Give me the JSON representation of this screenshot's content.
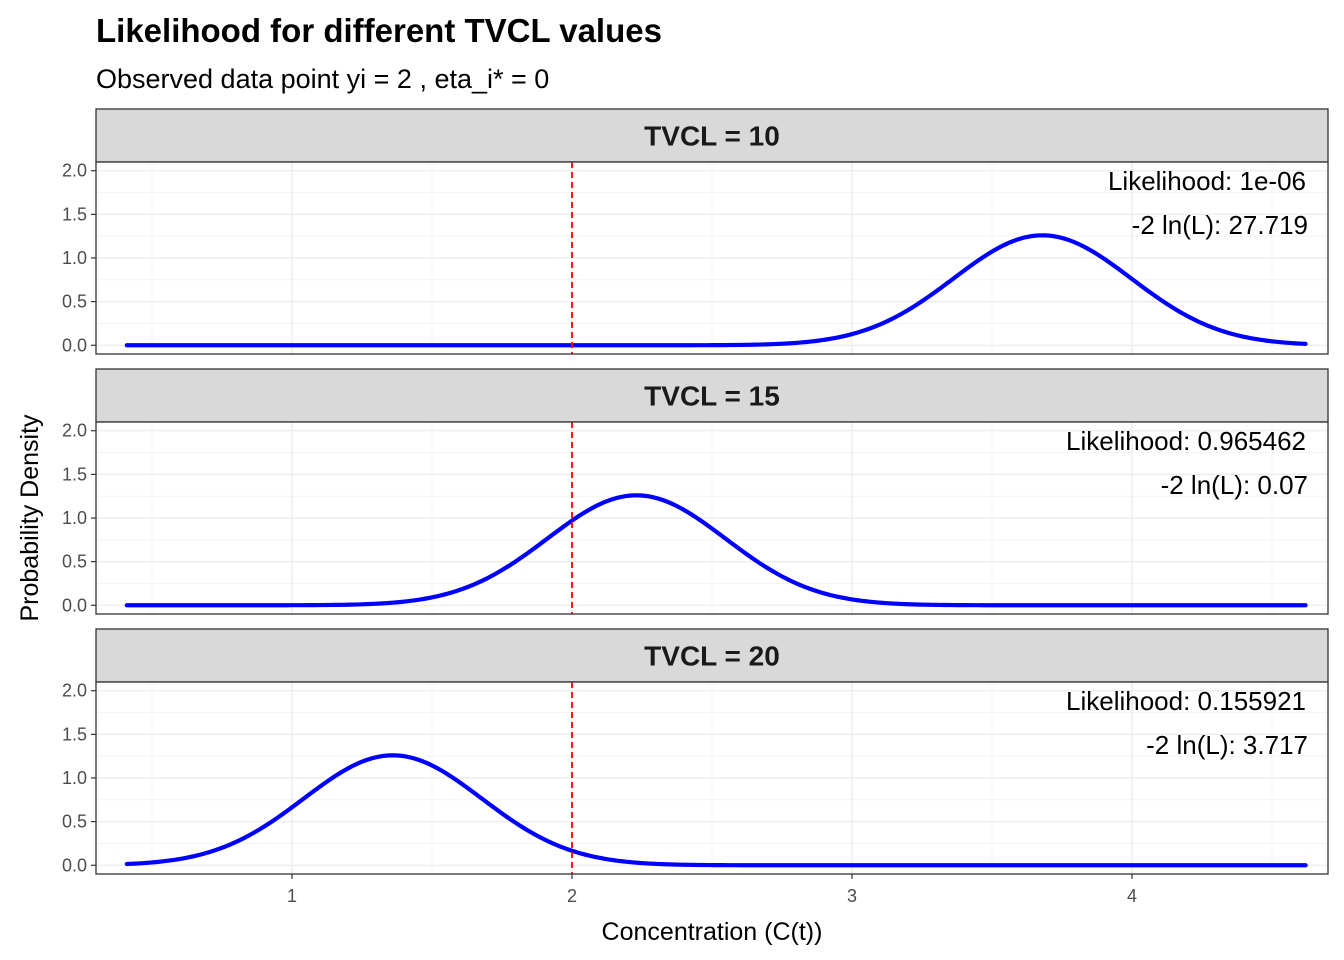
{
  "chart_data": {
    "type": "line",
    "title": "Likelihood for different TVCL values",
    "subtitle": "Observed data point yi = 2 , eta_i* = 0",
    "xlabel": "Concentration (C(t))",
    "ylabel": "Probability Density",
    "xlim": [
      0.3,
      4.7
    ],
    "ylim": [
      -0.1,
      2.1
    ],
    "x_ticks": [
      1,
      2,
      3,
      4
    ],
    "y_ticks": [
      0.0,
      0.5,
      1.0,
      1.5,
      2.0
    ],
    "x_tick_labels": [
      "1",
      "2",
      "3",
      "4"
    ],
    "y_tick_labels": [
      "0.0",
      "0.5",
      "1.0",
      "1.5",
      "2.0"
    ],
    "x_range": [
      0.41,
      4.62
    ],
    "vline": {
      "x": 2,
      "color": "#FF0000",
      "style": "dashed"
    },
    "line_color": "#0000FF",
    "strip_fill": "#D9D9D9",
    "grid": true,
    "legend": "none",
    "panels": [
      {
        "strip": "TVCL = 10",
        "peak_x": 3.68,
        "peak_y": 1.26,
        "annotation_1": "Likelihood: 1e-06",
        "annotation_2": "-2 ln(L): 27.719"
      },
      {
        "strip": "TVCL = 15",
        "peak_x": 2.23,
        "peak_y": 1.26,
        "annotation_1": "Likelihood: 0.965462",
        "annotation_2": "-2 ln(L): 0.07"
      },
      {
        "strip": "TVCL = 20",
        "peak_x": 1.36,
        "peak_y": 1.26,
        "annotation_1": "Likelihood: 0.155921",
        "annotation_2": "-2 ln(L): 3.717"
      }
    ]
  }
}
